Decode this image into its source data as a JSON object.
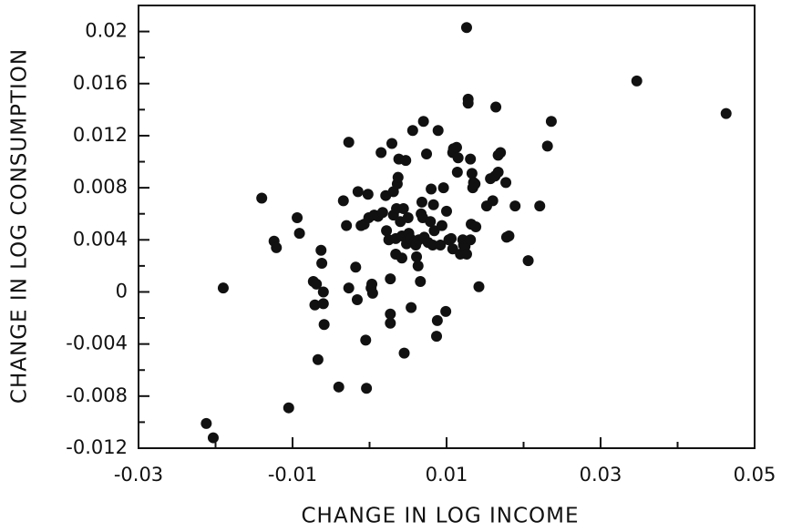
{
  "chart_data": {
    "type": "scatter",
    "x_label": "CHANGE IN LOG INCOME",
    "y_label": "CHANGE IN LOG CONSUMPTION",
    "color": "#111111",
    "xlim": [
      -0.03,
      0.05
    ],
    "xticks": [
      -0.03,
      -0.01,
      0.01,
      0.03,
      0.05
    ],
    "xminorticks": [
      -0.02,
      0,
      0.02,
      0.04
    ],
    "ylim": [
      -0.012,
      0.022
    ],
    "yticks": [
      -0.012,
      -0.008,
      -0.004,
      0,
      0.004,
      0.008,
      0.012,
      0.016,
      0.02
    ],
    "yminorticks": [
      -0.01,
      -0.006,
      -0.002,
      0.002,
      0.006,
      0.01,
      0.014,
      0.018
    ],
    "x": [
      -0.0212,
      -0.0203,
      -0.019,
      -0.014,
      -0.0124,
      -0.0121,
      -0.0105,
      -0.0094,
      -0.0091,
      -0.0073,
      -0.0071,
      -0.0069,
      -0.0067,
      -0.0063,
      -0.0062,
      -0.006,
      -0.006,
      -0.0059,
      -0.004,
      -0.0034,
      -0.003,
      -0.0027,
      -0.0027,
      -0.0018,
      -0.0016,
      -0.0015,
      -0.0011,
      -0.0007,
      -0.0005,
      -0.0004,
      -0.0002,
      -0.0001,
      0.0002,
      0.0003,
      0.0004,
      0.0006,
      0.0011,
      0.0015,
      0.0017,
      0.0021,
      0.0022,
      0.0025,
      0.0027,
      0.0027,
      0.0027,
      0.0029,
      0.0031,
      0.0031,
      0.0034,
      0.0034,
      0.0035,
      0.0036,
      0.0037,
      0.0038,
      0.004,
      0.0042,
      0.0042,
      0.0044,
      0.0045,
      0.0047,
      0.0048,
      0.005,
      0.0051,
      0.0053,
      0.0054,
      0.0056,
      0.0058,
      0.006,
      0.0061,
      0.0063,
      0.0064,
      0.0066,
      0.0067,
      0.0068,
      0.0069,
      0.007,
      0.0071,
      0.0074,
      0.0076,
      0.0079,
      0.008,
      0.0082,
      0.0083,
      0.0084,
      0.0087,
      0.0088,
      0.0089,
      0.0092,
      0.0094,
      0.0096,
      0.0099,
      0.01,
      0.0103,
      0.0106,
      0.0108,
      0.0108,
      0.0109,
      0.0113,
      0.0114,
      0.0115,
      0.0118,
      0.0121,
      0.0122,
      0.0124,
      0.0126,
      0.0126,
      0.0128,
      0.0128,
      0.0131,
      0.0131,
      0.0132,
      0.0133,
      0.0134,
      0.0135,
      0.0137,
      0.0138,
      0.0142,
      0.0152,
      0.0157,
      0.016,
      0.0163,
      0.0164,
      0.0167,
      0.0167,
      0.017,
      0.0177,
      0.0178,
      0.0181,
      0.0189,
      0.0206,
      0.0221,
      0.0231,
      0.0236,
      0.0347,
      0.0463
    ],
    "values": [
      -0.0101,
      -0.0112,
      0.0003,
      0.0072,
      0.0039,
      0.0034,
      -0.0089,
      0.0057,
      0.0045,
      0.0008,
      -0.001,
      0.0006,
      -0.0052,
      0.0032,
      0.0022,
      0,
      -0.0009,
      -0.0025,
      -0.0073,
      0.007,
      0.0051,
      0.0115,
      0.0003,
      0.0019,
      -0.0006,
      0.0077,
      0.0051,
      0.0052,
      -0.0037,
      -0.0074,
      0.0075,
      0.0057,
      0.0003,
      0.0006,
      -0.0001,
      0.0059,
      0.0058,
      0.0107,
      0.0061,
      0.0074,
      0.0047,
      0.004,
      0.001,
      -0.0017,
      -0.0024,
      0.0114,
      0.0077,
      0.0059,
      0.0029,
      0.0041,
      0.0064,
      0.0083,
      0.0088,
      0.0102,
      0.0054,
      0.0043,
      0.0026,
      0.0064,
      -0.0047,
      0.0101,
      0.0037,
      0.0057,
      0.0045,
      0.0041,
      -0.0012,
      0.0124,
      0.0038,
      0.0036,
      0.0027,
      0.002,
      0.004,
      0.0008,
      0.006,
      0.0069,
      0.0057,
      0.0131,
      0.0042,
      0.0106,
      0.0038,
      0.0054,
      0.0079,
      0.0036,
      0.0067,
      0.0047,
      -0.0034,
      -0.0022,
      0.0124,
      0.0036,
      0.0051,
      0.008,
      -0.0015,
      0.0062,
      0.004,
      0.0041,
      0.0033,
      0.0107,
      0.011,
      0.0111,
      0.0092,
      0.0103,
      0.0029,
      0.004,
      0.0036,
      0.0035,
      0.0029,
      0.0203,
      0.0148,
      0.0145,
      0.004,
      0.0102,
      0.0052,
      0.0091,
      0.008,
      0.0084,
      0.0083,
      0.005,
      0.0004,
      0.0066,
      0.0087,
      0.007,
      0.0089,
      0.0142,
      0.0105,
      0.0092,
      0.0107,
      0.0084,
      0.0042,
      0.0043,
      0.0066,
      0.0024,
      0.0066,
      0.0112,
      0.0131,
      0.0162,
      0.0137
    ]
  }
}
